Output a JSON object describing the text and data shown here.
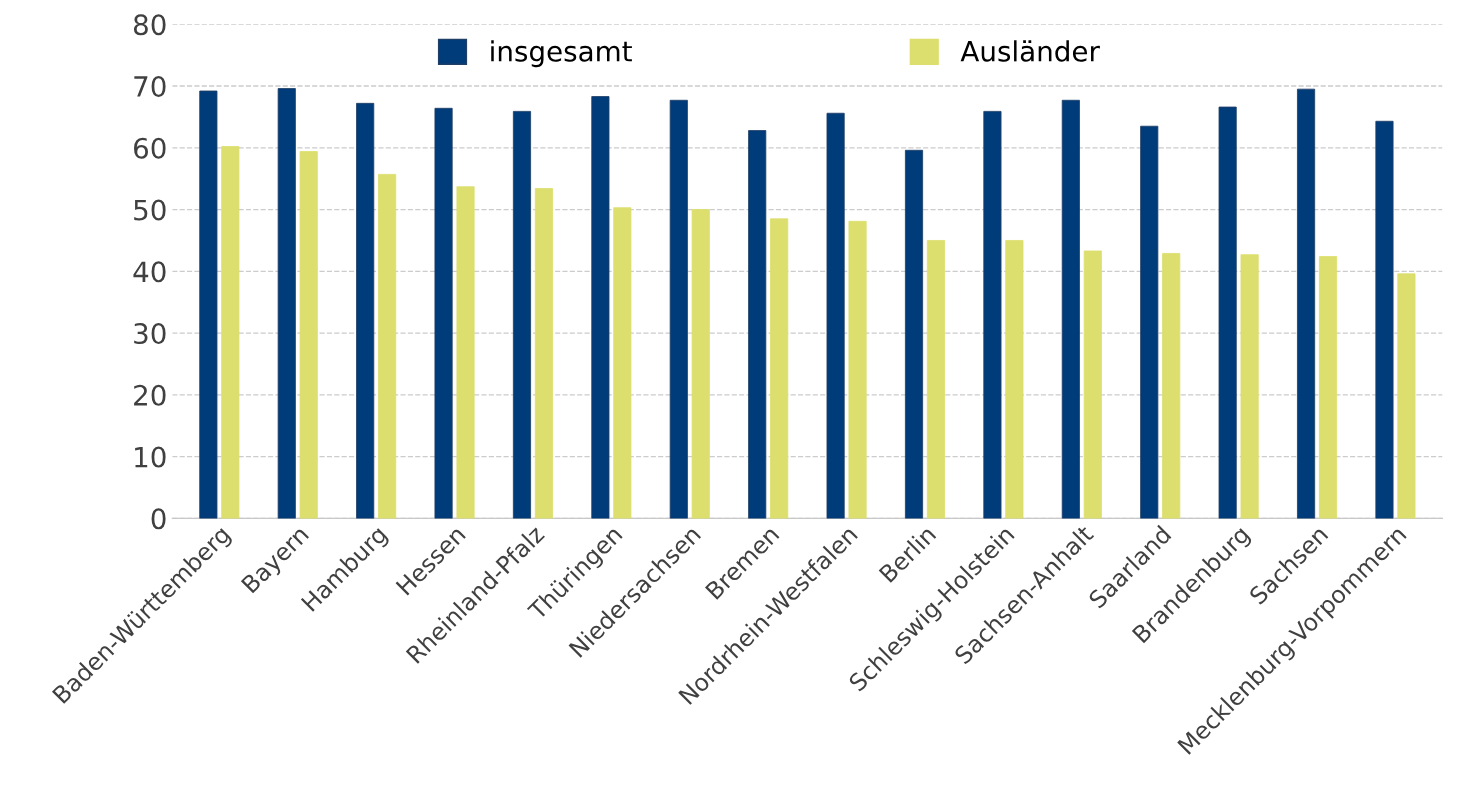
{
  "chart_data": {
    "type": "bar",
    "categories": [
      "Baden-Württemberg",
      "Bayern",
      "Hamburg",
      "Hessen",
      "Rheinland-Pfalz",
      "Thüringen",
      "Niedersachsen",
      "Bremen",
      "Nordrhein-Westfalen",
      "Berlin",
      "Schleswig-Holstein",
      "Sachsen-Anhalt",
      "Saarland",
      "Brandenburg",
      "Sachsen",
      "Mecklenburg-Vorpommern"
    ],
    "series": [
      {
        "name": "insgesamt",
        "color": "#003b7a",
        "values": [
          69.2,
          69.6,
          67.2,
          66.4,
          65.9,
          68.3,
          67.7,
          62.8,
          65.6,
          59.6,
          65.9,
          67.7,
          63.5,
          66.6,
          69.5,
          64.3
        ]
      },
      {
        "name": "Ausländer",
        "color": "#dcdf6e",
        "values": [
          60.2,
          59.4,
          55.7,
          53.7,
          53.4,
          50.3,
          50.0,
          48.5,
          48.1,
          45.0,
          45.0,
          43.3,
          42.9,
          42.7,
          42.4,
          39.6
        ]
      }
    ],
    "ylim": [
      0,
      80
    ],
    "yticks": [
      0,
      10,
      20,
      30,
      40,
      50,
      60,
      70,
      80
    ],
    "grid": "y",
    "legend": "top"
  }
}
